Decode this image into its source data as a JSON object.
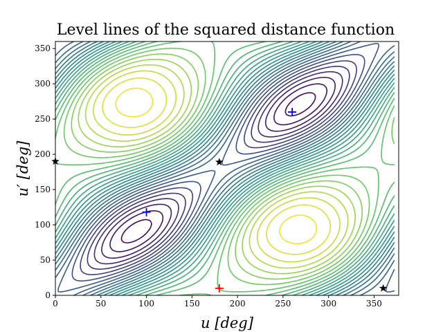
{
  "chart_data": {
    "type": "contour",
    "title": "Level lines of the squared distance function",
    "xlabel": "u [deg]",
    "ylabel": "u′ [deg]",
    "xlim": [
      0,
      377
    ],
    "ylim": [
      0,
      360
    ],
    "x_ticks": [
      0,
      50,
      100,
      150,
      200,
      250,
      300,
      350
    ],
    "y_ticks": [
      0,
      50,
      100,
      150,
      200,
      250,
      300,
      350
    ],
    "colormap": [
      "#440154",
      "#3b528b",
      "#21918c",
      "#5ec962",
      "#fde725"
    ],
    "grid": false,
    "legend": "none",
    "series": [
      {
        "marker": "plus",
        "color": "#0000ff",
        "points": [
          [
            100,
            118
          ],
          [
            260,
            260
          ]
        ]
      },
      {
        "marker": "plus",
        "color": "#ff0000",
        "points": [
          [
            180,
            10
          ]
        ]
      },
      {
        "marker": "star",
        "color": "#000000",
        "points": [
          [
            0,
            190
          ],
          [
            180,
            189
          ],
          [
            360,
            10
          ]
        ]
      }
    ]
  }
}
